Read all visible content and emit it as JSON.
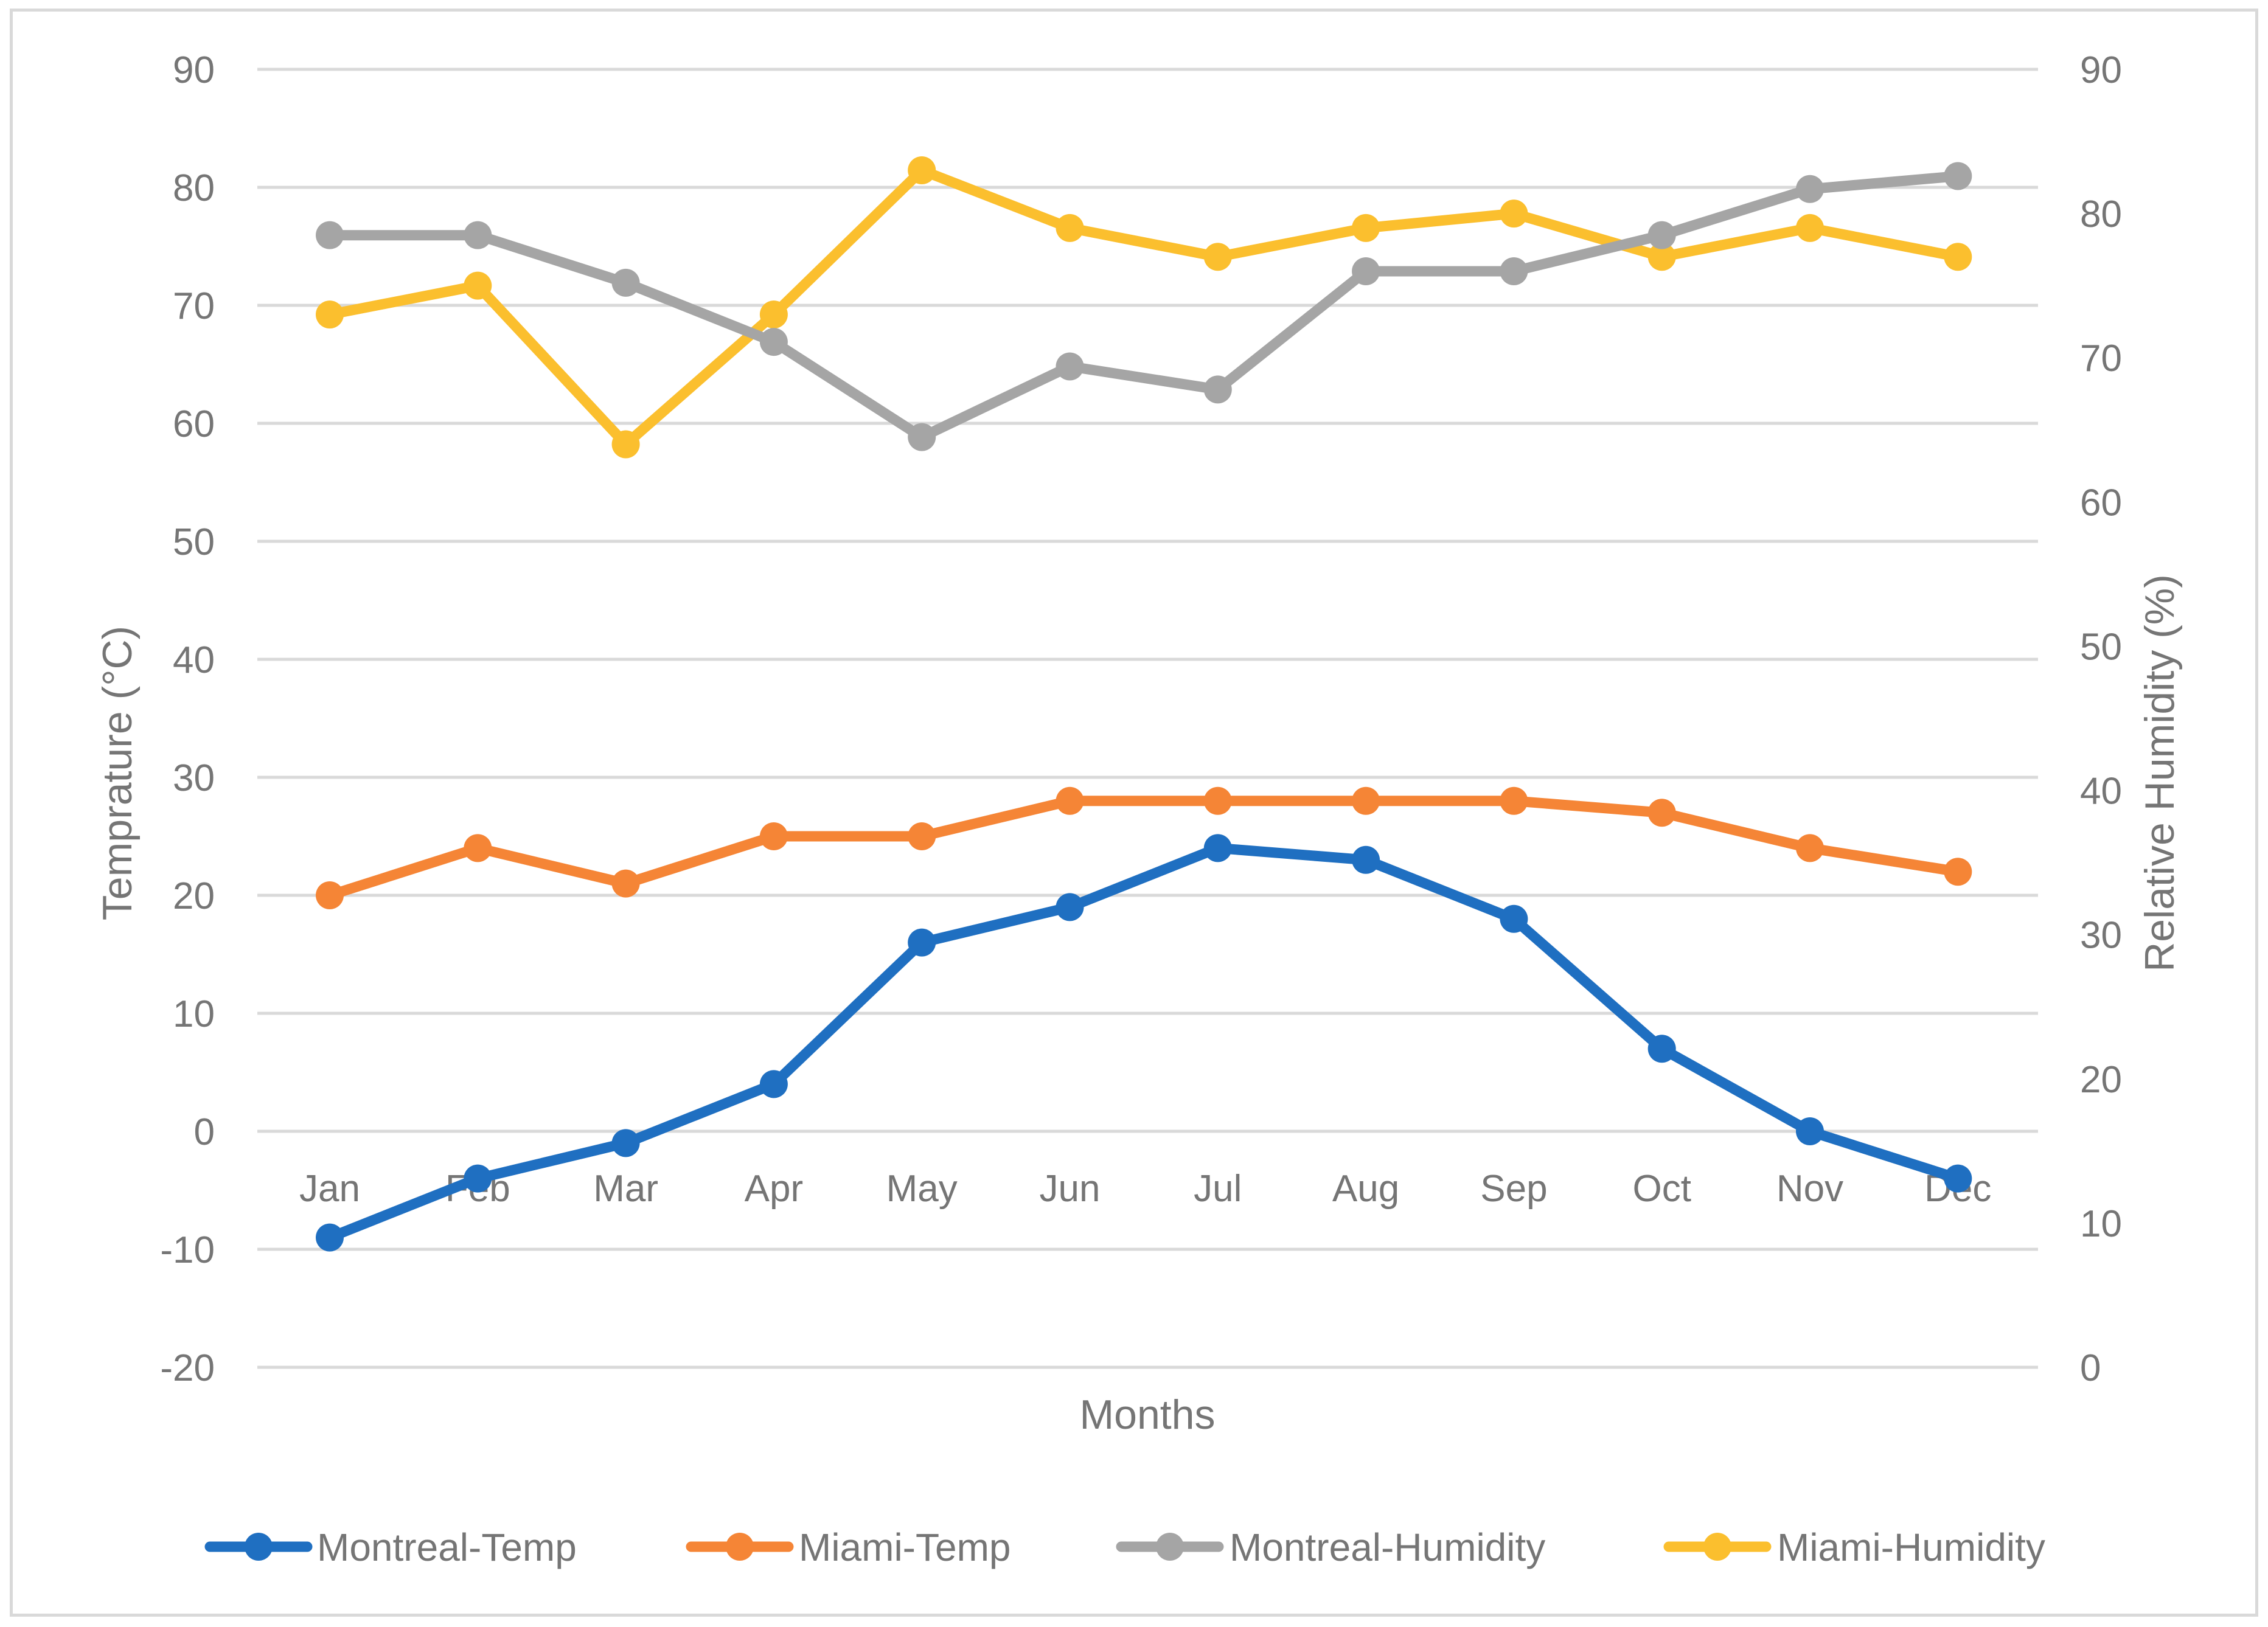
{
  "chart_data": {
    "type": "line",
    "title": "",
    "xlabel": "Months",
    "ylabel": "Temprature (°C)",
    "y2label": "Relative Humidity (%)",
    "categories": [
      "Jan",
      "Feb",
      "Mar",
      "Apr",
      "May",
      "Jun",
      "Jul",
      "Aug",
      "Sep",
      "Oct",
      "Nov",
      "Dec"
    ],
    "ylim": [
      -20,
      90
    ],
    "y2lim": [
      0,
      90
    ],
    "yticks": [
      "90",
      "80",
      "70",
      "60",
      "50",
      "40",
      "30",
      "20",
      "10",
      "0",
      "-10",
      "-20"
    ],
    "y2ticks": [
      "90",
      "80",
      "70",
      "60",
      "50",
      "40",
      "30",
      "20",
      "10",
      "0"
    ],
    "grid": true,
    "legend_position": "bottom",
    "series": [
      {
        "name": "Montreal-Temp",
        "axis": "left",
        "color": "#1f6fc1",
        "values": [
          -9,
          -4,
          -1,
          4,
          16,
          19,
          24,
          23,
          18,
          7,
          0,
          -4
        ]
      },
      {
        "name": "Miami-Temp",
        "axis": "left",
        "color": "#f58536",
        "values": [
          20,
          24,
          21,
          25,
          25,
          28,
          28,
          28,
          28,
          27,
          24,
          22
        ]
      },
      {
        "name": "Montreal-Humidity",
        "axis": "right",
        "color": "#a5a5a5",
        "values": [
          78.5,
          78.5,
          75.2,
          71.1,
          64.5,
          69.4,
          67.8,
          76.0,
          76.0,
          78.5,
          81.7,
          82.6
        ]
      },
      {
        "name": "Miami-Humidity",
        "axis": "right",
        "color": "#fbbf2e",
        "values": [
          73,
          75,
          64,
          73,
          83,
          79,
          77,
          79,
          80,
          77,
          79,
          77
        ]
      }
    ]
  }
}
